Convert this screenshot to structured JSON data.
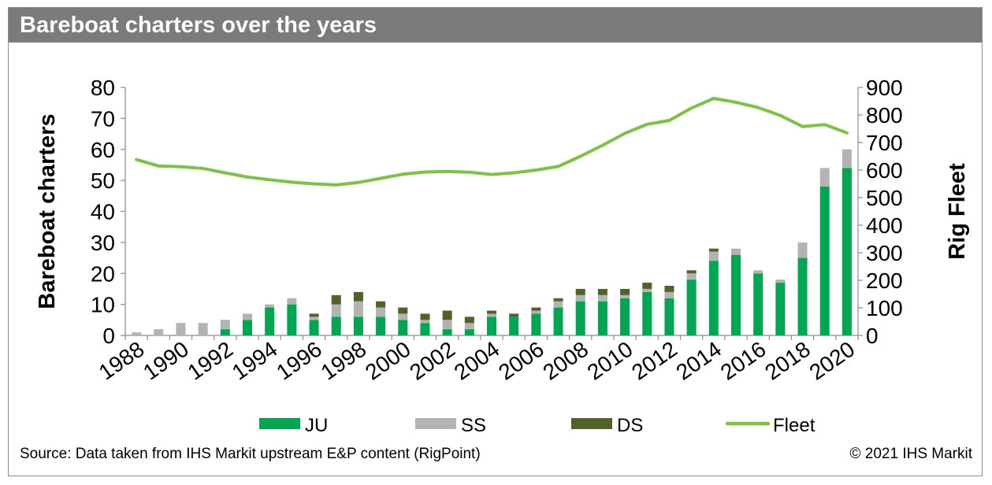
{
  "title": "Bareboat charters over the years",
  "source": "Source: Data taken from IHS Markit upstream E&P content (RigPoint)",
  "copyright": "© 2021 IHS Markit",
  "colors": {
    "JU": "#00a651",
    "SS": "#b3b3b3",
    "DS": "#4f6228",
    "Fleet": "#7cc243",
    "title_bar": "#7b7b7b"
  },
  "chart_data": {
    "type": "bar",
    "stacked": true,
    "x": [
      1988,
      1989,
      1990,
      1991,
      1992,
      1993,
      1994,
      1995,
      1996,
      1997,
      1998,
      1999,
      2000,
      2001,
      2002,
      2003,
      2004,
      2005,
      2006,
      2007,
      2008,
      2009,
      2010,
      2011,
      2012,
      2013,
      2014,
      2015,
      2016,
      2017,
      2018,
      2019,
      2020
    ],
    "x_tick_labels": [
      "1988",
      "1990",
      "1992",
      "1994",
      "1996",
      "1998",
      "2000",
      "2002",
      "2004",
      "2006",
      "2008",
      "2010",
      "2012",
      "2014",
      "2016",
      "2018",
      "2020"
    ],
    "series": [
      {
        "name": "JU",
        "type": "bar",
        "axis": "left",
        "values": [
          0,
          0,
          0,
          0,
          2,
          5,
          9,
          10,
          5,
          6,
          6,
          6,
          5,
          4,
          2,
          2,
          6,
          6,
          7,
          9,
          11,
          11,
          12,
          14,
          12,
          18,
          24,
          26,
          20,
          17,
          25,
          48,
          54
        ]
      },
      {
        "name": "SS",
        "type": "bar",
        "axis": "left",
        "values": [
          1,
          2,
          4,
          4,
          3,
          2,
          1,
          2,
          1,
          4,
          5,
          3,
          2,
          1,
          3,
          2,
          1,
          0,
          1,
          2,
          2,
          2,
          1,
          1,
          2,
          2,
          3,
          2,
          1,
          1,
          5,
          6,
          6
        ]
      },
      {
        "name": "DS",
        "type": "bar",
        "axis": "left",
        "values": [
          0,
          0,
          0,
          0,
          0,
          0,
          0,
          0,
          1,
          3,
          3,
          2,
          2,
          2,
          3,
          2,
          1,
          1,
          1,
          1,
          2,
          2,
          2,
          2,
          2,
          1,
          1,
          0,
          0,
          0,
          0,
          0,
          0
        ]
      },
      {
        "name": "Fleet",
        "type": "line",
        "axis": "right",
        "values": [
          638,
          615,
          612,
          606,
          590,
          575,
          565,
          556,
          550,
          546,
          555,
          570,
          585,
          593,
          595,
          592,
          584,
          590,
          600,
          613,
          650,
          690,
          733,
          766,
          780,
          825,
          860,
          846,
          827,
          798,
          758,
          765,
          735
        ]
      }
    ],
    "ylabel": "Bareboat charters",
    "ylim": [
      0,
      80
    ],
    "y_ticks": [
      "0",
      "10",
      "20",
      "30",
      "40",
      "50",
      "60",
      "70",
      "80"
    ],
    "y2label": "Rig Fleet",
    "y2lim": [
      0,
      900
    ],
    "y2_ticks": [
      "0",
      "100",
      "200",
      "300",
      "400",
      "500",
      "600",
      "700",
      "800",
      "900"
    ],
    "grid": false,
    "legend_position": "bottom"
  }
}
